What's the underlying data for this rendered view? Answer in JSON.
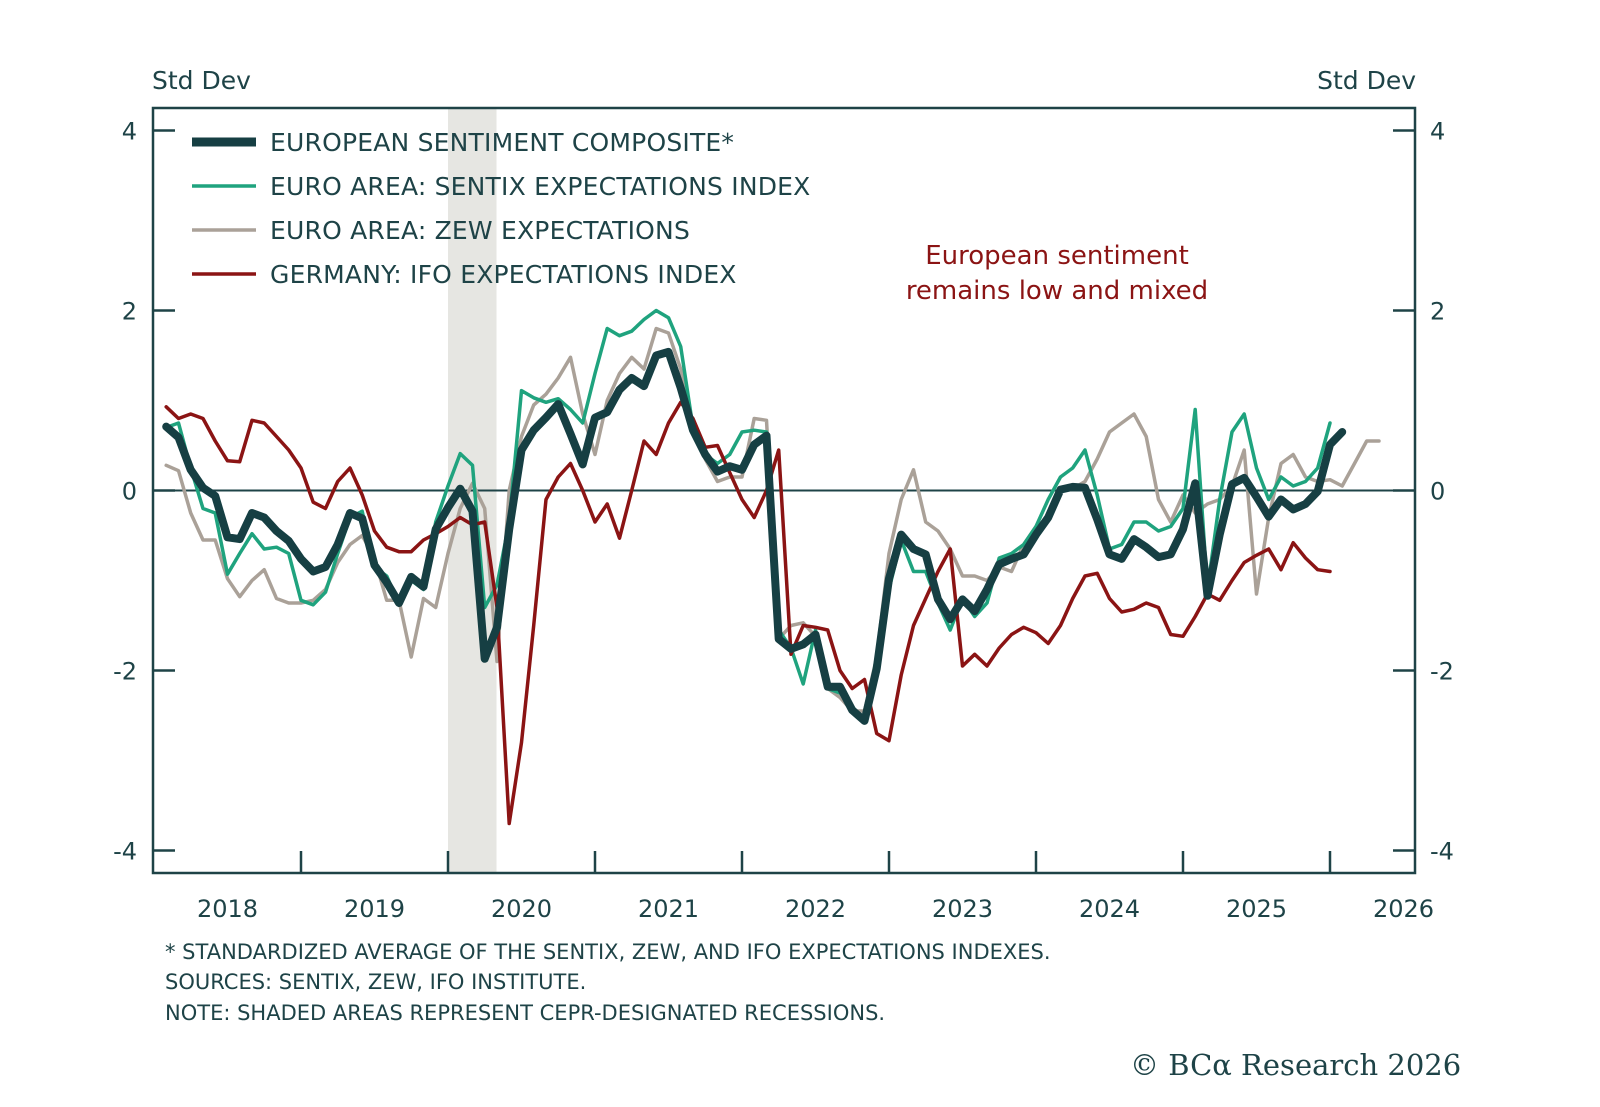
{
  "chart_data": {
    "type": "line",
    "title": "",
    "ylabel_left": "Std Dev",
    "ylabel_right": "Std Dev",
    "xlabel": "",
    "ylim": [
      -4.25,
      4.25
    ],
    "xlim": [
      2018.0,
      2026.6
    ],
    "y_ticks": [
      4,
      2,
      0,
      -2,
      -4
    ],
    "y_tick_labels": [
      "4",
      "2",
      "0",
      "-2",
      "-4"
    ],
    "x_ticks": [
      2018,
      2019,
      2020,
      2021,
      2022,
      2023,
      2024,
      2025,
      2026
    ],
    "x_tick_labels": [
      "2018",
      "2019",
      "2020",
      "2021",
      "2022",
      "2023",
      "2024",
      "2025",
      "2026"
    ],
    "zero_line": true,
    "grid": false,
    "legend_position": "top-left",
    "recessions": [
      {
        "start": 2020.0,
        "end": 2020.33
      }
    ],
    "annotation": {
      "lines": [
        "European sentiment",
        "remains low and mixed"
      ],
      "color": "#8b1414",
      "position": "top-right"
    },
    "x_start": 2018.083,
    "x_step_months": 1,
    "series": [
      {
        "name": "EUROPEAN SENTIMENT COMPOSITE*",
        "color": "#163f43",
        "weight": "thick",
        "values": [
          0.71,
          0.59,
          0.23,
          0.03,
          -0.06,
          -0.52,
          -0.54,
          -0.25,
          -0.3,
          -0.45,
          -0.56,
          -0.76,
          -0.9,
          -0.85,
          -0.6,
          -0.25,
          -0.31,
          -0.83,
          -1.02,
          -1.25,
          -0.96,
          -1.07,
          -0.43,
          -0.19,
          0.02,
          -0.23,
          -1.87,
          -1.52,
          -0.43,
          0.45,
          0.67,
          0.81,
          0.96,
          0.63,
          0.29,
          0.81,
          0.87,
          1.12,
          1.25,
          1.16,
          1.5,
          1.54,
          1.14,
          0.67,
          0.4,
          0.21,
          0.27,
          0.23,
          0.51,
          0.61,
          -1.65,
          -1.76,
          -1.71,
          -1.6,
          -2.18,
          -2.18,
          -2.44,
          -2.56,
          -1.98,
          -0.98,
          -0.49,
          -0.65,
          -0.71,
          -1.21,
          -1.43,
          -1.21,
          -1.34,
          -1.1,
          -0.82,
          -0.76,
          -0.71,
          -0.49,
          -0.3,
          0.01,
          0.04,
          0.03,
          -0.32,
          -0.71,
          -0.76,
          -0.54,
          -0.63,
          -0.74,
          -0.71,
          -0.43,
          0.08,
          -1.17,
          -0.49,
          0.07,
          0.14,
          -0.07,
          -0.29,
          -0.1,
          -0.21,
          -0.15,
          -0.01,
          0.51,
          0.65
        ]
      },
      {
        "name": "EURO AREA: SENTIX EXPECTATIONS INDEX",
        "color": "#1fa37e",
        "weight": "thin",
        "values": [
          0.7,
          0.75,
          0.25,
          -0.2,
          -0.25,
          -0.93,
          -0.7,
          -0.48,
          -0.65,
          -0.63,
          -0.7,
          -1.22,
          -1.27,
          -1.13,
          -0.7,
          -0.3,
          -0.23,
          -0.85,
          -0.95,
          -1.26,
          -1.0,
          -1.1,
          -0.35,
          0.05,
          0.41,
          0.28,
          -1.3,
          -1.05,
          -0.35,
          1.11,
          1.03,
          0.98,
          1.02,
          0.9,
          0.75,
          1.3,
          1.8,
          1.72,
          1.77,
          1.9,
          2.0,
          1.92,
          1.6,
          0.7,
          0.4,
          0.3,
          0.4,
          0.65,
          0.67,
          0.65,
          -1.55,
          -1.75,
          -2.15,
          -1.55,
          -2.2,
          -2.25,
          -2.4,
          -2.55,
          -1.85,
          -1.1,
          -0.55,
          -0.9,
          -0.9,
          -1.25,
          -1.55,
          -1.2,
          -1.4,
          -1.25,
          -0.75,
          -0.7,
          -0.6,
          -0.4,
          -0.1,
          0.15,
          0.25,
          0.45,
          -0.05,
          -0.65,
          -0.6,
          -0.35,
          -0.35,
          -0.45,
          -0.4,
          -0.2,
          0.9,
          -1.1,
          -0.1,
          0.65,
          0.85,
          0.25,
          -0.1,
          0.15,
          0.05,
          0.1,
          0.25,
          0.75
        ]
      },
      {
        "name": "EURO AREA: ZEW EXPECTATIONS",
        "color": "#aaa198",
        "weight": "thin",
        "values": [
          0.28,
          0.22,
          -0.25,
          -0.55,
          -0.55,
          -0.98,
          -1.18,
          -1.0,
          -0.88,
          -1.2,
          -1.25,
          -1.25,
          -1.22,
          -1.1,
          -0.8,
          -0.6,
          -0.5,
          -0.75,
          -1.22,
          -1.22,
          -1.85,
          -1.2,
          -1.3,
          -0.7,
          -0.2,
          0.08,
          -0.2,
          -1.9,
          0.0,
          0.6,
          0.95,
          1.07,
          1.25,
          1.48,
          0.85,
          0.4,
          1.0,
          1.3,
          1.48,
          1.35,
          1.8,
          1.75,
          1.35,
          0.7,
          0.35,
          0.1,
          0.15,
          0.15,
          0.8,
          0.78,
          -1.65,
          -1.5,
          -1.47,
          -1.62,
          -2.2,
          -2.3,
          -2.45,
          -2.45,
          -1.85,
          -0.7,
          -0.1,
          0.23,
          -0.35,
          -0.45,
          -0.65,
          -0.95,
          -0.95,
          -1.0,
          -0.85,
          -0.9,
          -0.6,
          -0.4,
          -0.3,
          0.02,
          0.02,
          0.1,
          0.35,
          0.65,
          0.75,
          0.85,
          0.6,
          -0.1,
          -0.35,
          -0.05,
          -0.25,
          -0.15,
          -0.1,
          0.05,
          0.45,
          -1.15,
          -0.3,
          0.3,
          0.4,
          0.15,
          0.1,
          0.12,
          0.05,
          0.3,
          0.55,
          0.55
        ]
      },
      {
        "name": "GERMANY: IFO EXPECTATIONS INDEX",
        "color": "#8b1414",
        "weight": "thin",
        "values": [
          0.93,
          0.8,
          0.85,
          0.8,
          0.55,
          0.33,
          0.32,
          0.78,
          0.75,
          0.6,
          0.45,
          0.25,
          -0.13,
          -0.2,
          0.1,
          0.25,
          -0.05,
          -0.45,
          -0.63,
          -0.68,
          -0.68,
          -0.55,
          -0.48,
          -0.4,
          -0.3,
          -0.38,
          -0.35,
          -1.3,
          -3.7,
          -2.8,
          -1.5,
          -0.1,
          0.15,
          0.3,
          0.0,
          -0.35,
          -0.15,
          -0.53,
          0.0,
          0.55,
          0.4,
          0.75,
          0.98,
          0.8,
          0.48,
          0.5,
          0.2,
          -0.1,
          -0.3,
          0.0,
          0.45,
          -1.82,
          -1.5,
          -1.52,
          -1.55,
          -2.0,
          -2.2,
          -2.1,
          -2.7,
          -2.78,
          -2.05,
          -1.5,
          -1.2,
          -0.9,
          -0.65,
          -1.95,
          -1.82,
          -1.95,
          -1.75,
          -1.6,
          -1.52,
          -1.58,
          -1.7,
          -1.5,
          -1.2,
          -0.95,
          -0.92,
          -1.2,
          -1.35,
          -1.32,
          -1.25,
          -1.3,
          -1.6,
          -1.62,
          -1.4,
          -1.15,
          -1.22,
          -1.0,
          -0.8,
          -0.72,
          -0.65,
          -0.88,
          -0.58,
          -0.75,
          -0.88,
          -0.9
        ]
      }
    ]
  },
  "legend": {
    "items": [
      {
        "label": "EUROPEAN SENTIMENT COMPOSITE*",
        "color": "#163f43"
      },
      {
        "label": "EURO AREA: SENTIX EXPECTATIONS INDEX",
        "color": "#1fa37e"
      },
      {
        "label": "EURO AREA: ZEW EXPECTATIONS",
        "color": "#aaa198"
      },
      {
        "label": "GERMANY: IFO EXPECTATIONS INDEX",
        "color": "#8b1414"
      }
    ]
  },
  "footnotes": {
    "line1": "* STANDARDIZED AVERAGE OF THE SENTIX, ZEW, AND IFO EXPECTATIONS INDEXES.",
    "line2": "SOURCES: SENTIX, ZEW, IFO INSTITUTE.",
    "line3": "NOTE: SHADED AREAS REPRESENT CEPR-DESIGNATED RECESSIONS."
  },
  "credit": "© BCα Research 2026",
  "colors": {
    "axis": "#1e4347",
    "recession_shade": "#e6e6e2"
  }
}
